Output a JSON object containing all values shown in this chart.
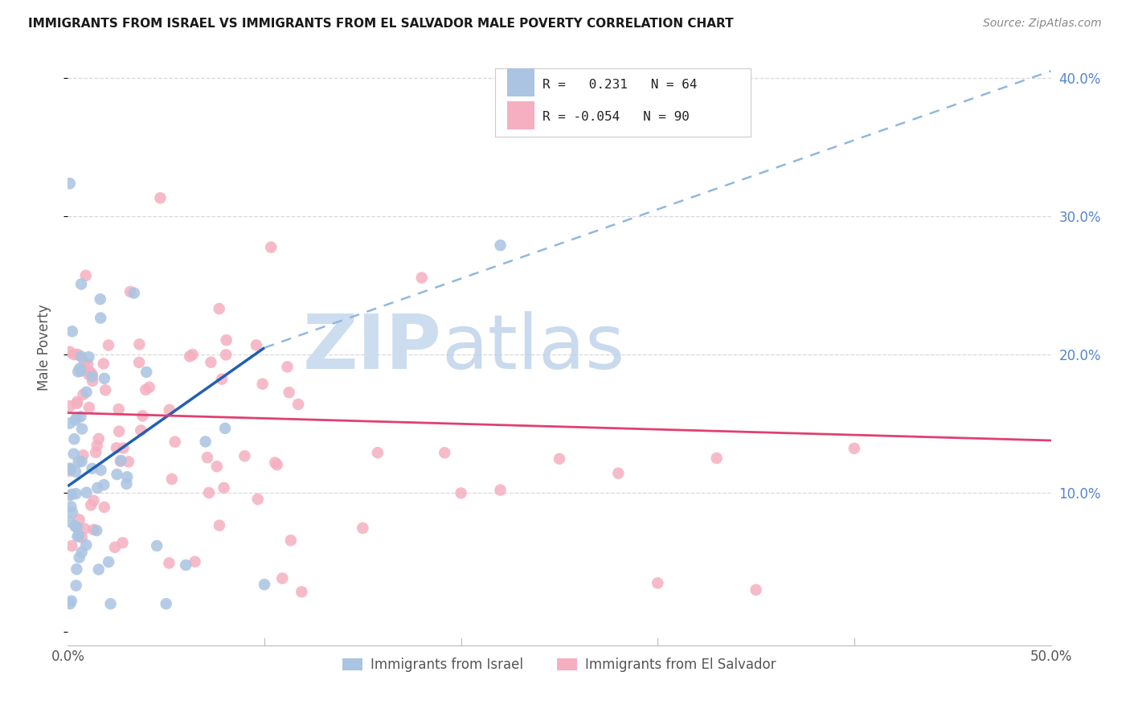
{
  "title": "IMMIGRANTS FROM ISRAEL VS IMMIGRANTS FROM EL SALVADOR MALE POVERTY CORRELATION CHART",
  "source": "Source: ZipAtlas.com",
  "ylabel": "Male Poverty",
  "xlim": [
    0.0,
    0.5
  ],
  "ylim": [
    -0.01,
    0.42
  ],
  "legend_blue_r": "0.231",
  "legend_blue_n": "64",
  "legend_pink_r": "-0.054",
  "legend_pink_n": "90",
  "legend_label_blue": "Immigrants from Israel",
  "legend_label_pink": "Immigrants from El Salvador",
  "blue_color": "#aac4e2",
  "pink_color": "#f5afc0",
  "blue_line_color": "#2060b0",
  "pink_line_color": "#e04070",
  "dashed_line_color": "#90b8e0",
  "watermark_zip_color": "#ccddf0",
  "watermark_atlas_color": "#c0d4ec",
  "background_color": "#ffffff",
  "grid_color": "#d8d8d8",
  "right_axis_color": "#5585cc",
  "blue_line_start_x": 0.0,
  "blue_line_start_y": 0.105,
  "blue_line_solid_end_x": 0.1,
  "blue_line_solid_end_y": 0.205,
  "blue_line_dashed_end_x": 0.5,
  "blue_line_dashed_end_y": 0.405,
  "pink_line_start_x": 0.0,
  "pink_line_start_y": 0.158,
  "pink_line_end_x": 0.5,
  "pink_line_end_y": 0.138
}
